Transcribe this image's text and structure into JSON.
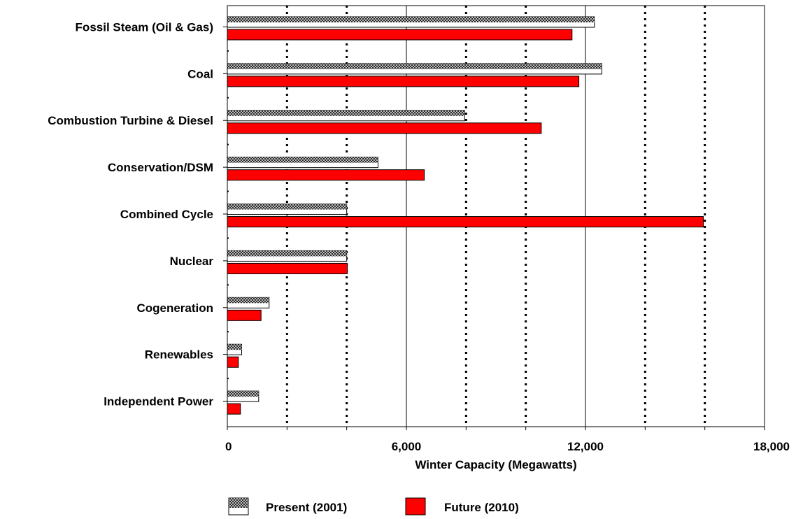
{
  "chart_data": {
    "type": "bar",
    "orientation": "horizontal",
    "categories": [
      "Fossil Steam (Oil & Gas)",
      "Coal",
      "Combustion Turbine & Diesel",
      "Conservation/DSM",
      "Combined Cycle",
      "Nuclear",
      "Cogeneration",
      "Renewables",
      "Independent Power"
    ],
    "series": [
      {
        "name": "Present (2001)",
        "color": "#ffffff",
        "pattern": "dotted-dark",
        "values": [
          12300,
          12550,
          7950,
          5050,
          4000,
          4000,
          1400,
          480,
          1050
        ]
      },
      {
        "name": "Future (2010)",
        "color": "#ff0000",
        "values": [
          11550,
          11780,
          10520,
          6600,
          15950,
          4020,
          1130,
          370,
          440
        ]
      }
    ],
    "xlabel": "Winter Capacity (Megawatts)",
    "ylabel": "",
    "xlim": [
      0,
      18000
    ],
    "x_ticks": [
      "0",
      "6,000",
      "12,000",
      "18,000"
    ],
    "grid": "vertical solid major lines with dotted minor lines",
    "legend_position": "bottom"
  }
}
